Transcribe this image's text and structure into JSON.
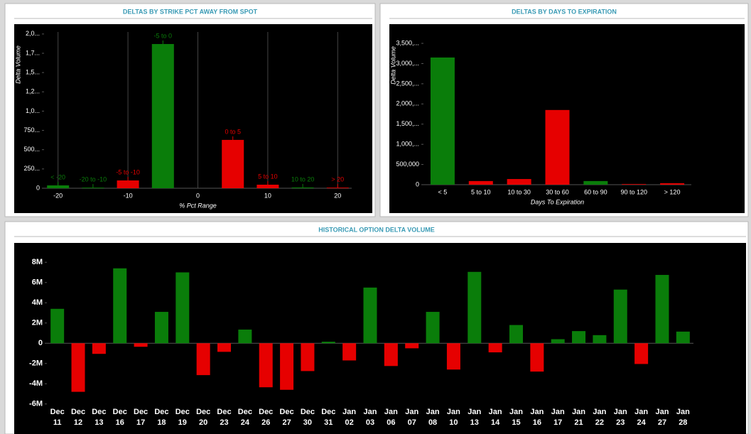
{
  "chart_data": [
    {
      "type": "bar",
      "title": "DELTAS BY STRIKE PCT AWAY FROM SPOT",
      "xlabel": "% Pct Range",
      "ylabel": "Delta Volume",
      "x": [
        -20,
        -15,
        -10,
        -5,
        5,
        10,
        15,
        20
      ],
      "bar_labels": [
        "< -20",
        "-20 to -10",
        "-5 to -10",
        "-5 to 0",
        "0 to 5",
        "5 to 10",
        "10 to 20",
        "> 20"
      ],
      "values": [
        37000,
        8000,
        101000,
        1870000,
        627000,
        46000,
        10000,
        8000
      ],
      "colors": [
        "#0a7d0a",
        "#0a7d0a",
        "#e60000",
        "#0a7d0a",
        "#e60000",
        "#e60000",
        "#0a7d0a",
        "#e60000"
      ],
      "xlim": [
        -22,
        22
      ],
      "xticks": [
        -20,
        -10,
        0,
        10,
        20
      ],
      "ylim": [
        0,
        2100000
      ],
      "yticks": [
        0,
        {
          "value": 250000,
          "label": "250..."
        },
        {
          "value": 500000,
          "label": "500..."
        },
        {
          "value": 750000,
          "label": "750..."
        },
        {
          "value": 1000000,
          "label": "1,0..."
        },
        {
          "value": 1250000,
          "label": "1,2..."
        },
        {
          "value": 1500000,
          "label": "1,5..."
        },
        {
          "value": 1750000,
          "label": "1,7..."
        },
        {
          "value": 2000000,
          "label": "2,0..."
        }
      ]
    },
    {
      "type": "bar",
      "title": "DELTAS BY DAYS TO EXPIRATION",
      "xlabel": "Days To Expiration",
      "ylabel": "Delta Volume",
      "categories": [
        "< 5",
        "5 to 10",
        "10 to 30",
        "30 to 60",
        "60 to 90",
        "90 to 120",
        "> 120"
      ],
      "values": [
        3150000,
        90000,
        140000,
        1850000,
        90000,
        15000,
        35000
      ],
      "colors": [
        "#0a7d0a",
        "#e60000",
        "#e60000",
        "#e60000",
        "#0a7d0a",
        "#e60000",
        "#e60000"
      ],
      "ylim": [
        0,
        3800000
      ],
      "yticks": [
        0,
        {
          "value": 500000,
          "label": "500,000"
        },
        {
          "value": 1000000,
          "label": "1,000,..."
        },
        {
          "value": 1500000,
          "label": "1,500,..."
        },
        {
          "value": 2000000,
          "label": "2,000,..."
        },
        {
          "value": 2500000,
          "label": "2,500,..."
        },
        {
          "value": 3000000,
          "label": "3,000,..."
        },
        {
          "value": 3500000,
          "label": "3,500,..."
        }
      ]
    },
    {
      "type": "bar",
      "title": "HISTORICAL OPTION DELTA VOLUME",
      "categories": [
        [
          "Dec",
          "11"
        ],
        [
          "Dec",
          "12"
        ],
        [
          "Dec",
          "13"
        ],
        [
          "Dec",
          "16"
        ],
        [
          "Dec",
          "17"
        ],
        [
          "Dec",
          "18"
        ],
        [
          "Dec",
          "19"
        ],
        [
          "Dec",
          "20"
        ],
        [
          "Dec",
          "23"
        ],
        [
          "Dec",
          "24"
        ],
        [
          "Dec",
          "26"
        ],
        [
          "Dec",
          "27"
        ],
        [
          "Dec",
          "30"
        ],
        [
          "Dec",
          "31"
        ],
        [
          "Jan",
          "02"
        ],
        [
          "Jan",
          "03"
        ],
        [
          "Jan",
          "06"
        ],
        [
          "Jan",
          "07"
        ],
        [
          "Jan",
          "08"
        ],
        [
          "Jan",
          "10"
        ],
        [
          "Jan",
          "13"
        ],
        [
          "Jan",
          "14"
        ],
        [
          "Jan",
          "15"
        ],
        [
          "Jan",
          "16"
        ],
        [
          "Jan",
          "17"
        ],
        [
          "Jan",
          "21"
        ],
        [
          "Jan",
          "22"
        ],
        [
          "Jan",
          "23"
        ],
        [
          "Jan",
          "24"
        ],
        [
          "Jan",
          "27"
        ],
        [
          "Jan",
          "28"
        ]
      ],
      "values": [
        3400000,
        -4800000,
        -1050000,
        7400000,
        -350000,
        3100000,
        7000000,
        -3150000,
        -850000,
        1350000,
        -4350000,
        -4600000,
        -2750000,
        150000,
        -1700000,
        5500000,
        -2250000,
        -500000,
        3100000,
        -2600000,
        7050000,
        -900000,
        1800000,
        -2800000,
        400000,
        1200000,
        800000,
        5300000,
        -2050000,
        6750000,
        1150000
      ],
      "positive_color": "#0a7d0a",
      "negative_color": "#e60000",
      "ylim": [
        -6300000,
        9700000
      ],
      "yticks": [
        {
          "value": -6000000,
          "label": "-6M"
        },
        {
          "value": -4000000,
          "label": "-4M"
        },
        {
          "value": -2000000,
          "label": "-2M"
        },
        0,
        {
          "value": 2000000,
          "label": "2M"
        },
        {
          "value": 4000000,
          "label": "4M"
        },
        {
          "value": 6000000,
          "label": "6M"
        },
        {
          "value": 8000000,
          "label": "8M"
        }
      ]
    }
  ]
}
